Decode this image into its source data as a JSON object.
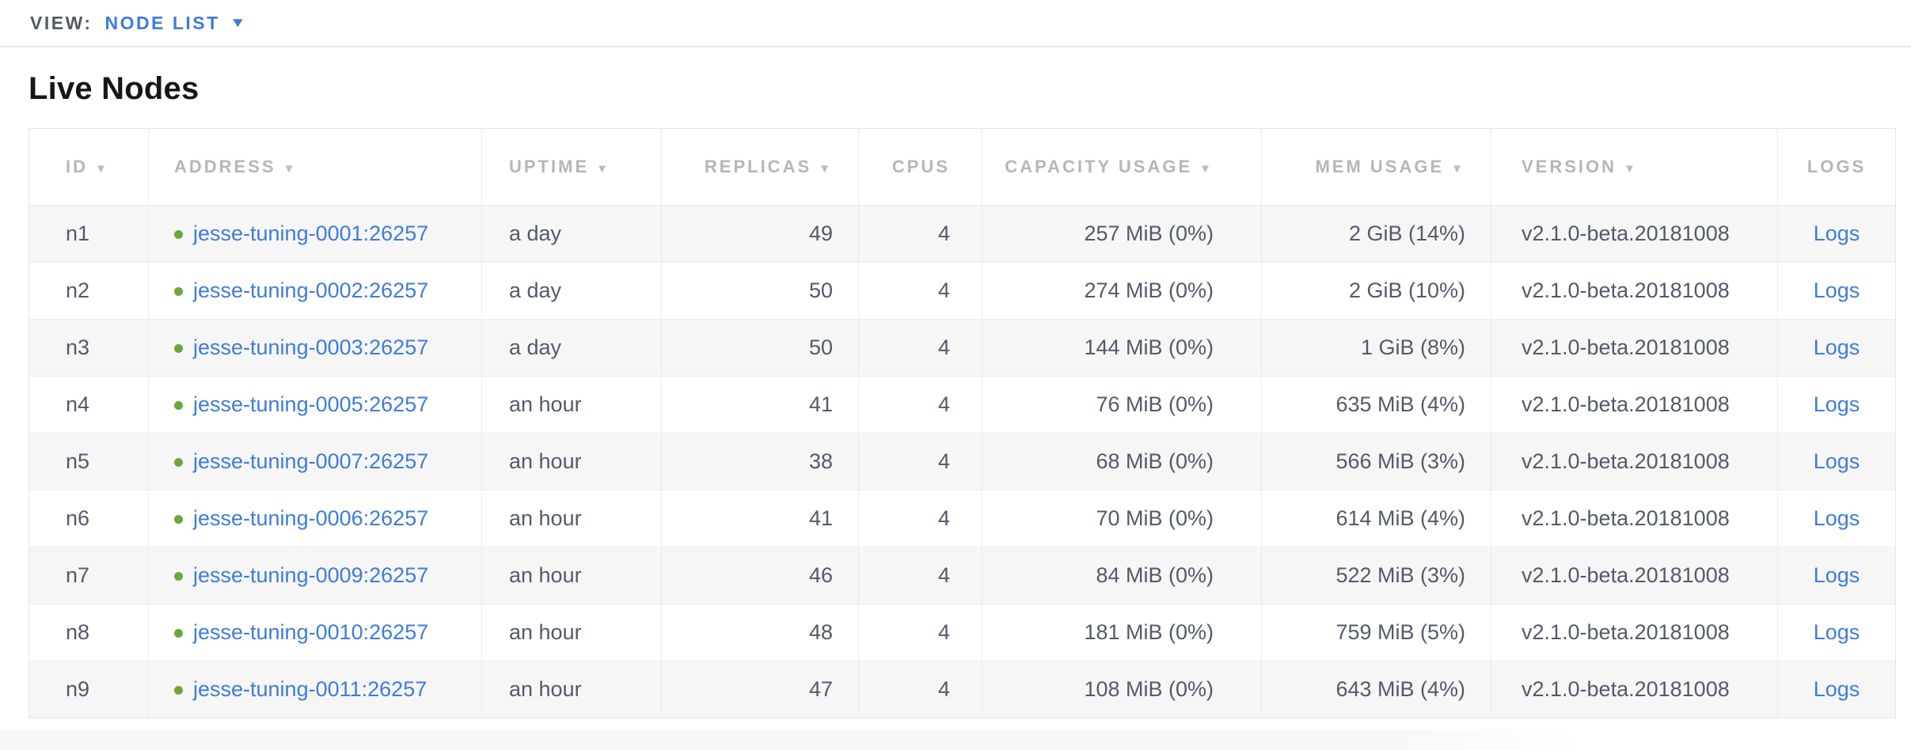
{
  "view_bar": {
    "label": "VIEW:",
    "selected": "NODE LIST"
  },
  "page": {
    "title": "Live Nodes"
  },
  "table": {
    "columns": [
      {
        "key": "id",
        "label": "ID",
        "sortable": true
      },
      {
        "key": "address",
        "label": "ADDRESS",
        "sortable": true
      },
      {
        "key": "uptime",
        "label": "UPTIME",
        "sortable": true
      },
      {
        "key": "replicas",
        "label": "REPLICAS",
        "sortable": true
      },
      {
        "key": "cpus",
        "label": "CPUS",
        "sortable": false
      },
      {
        "key": "capacity",
        "label": "CAPACITY USAGE",
        "sortable": true
      },
      {
        "key": "mem",
        "label": "MEM USAGE",
        "sortable": true
      },
      {
        "key": "version",
        "label": "VERSION",
        "sortable": true
      },
      {
        "key": "logs",
        "label": "LOGS",
        "sortable": false
      }
    ],
    "rows": [
      {
        "id": "n1",
        "address": "jesse-tuning-0001:26257",
        "uptime": "a day",
        "replicas": "49",
        "cpus": "4",
        "capacity": "257 MiB (0%)",
        "mem": "2 GiB (14%)",
        "version": "v2.1.0-beta.20181008",
        "logs": "Logs"
      },
      {
        "id": "n2",
        "address": "jesse-tuning-0002:26257",
        "uptime": "a day",
        "replicas": "50",
        "cpus": "4",
        "capacity": "274 MiB (0%)",
        "mem": "2 GiB (10%)",
        "version": "v2.1.0-beta.20181008",
        "logs": "Logs"
      },
      {
        "id": "n3",
        "address": "jesse-tuning-0003:26257",
        "uptime": "a day",
        "replicas": "50",
        "cpus": "4",
        "capacity": "144 MiB (0%)",
        "mem": "1 GiB (8%)",
        "version": "v2.1.0-beta.20181008",
        "logs": "Logs"
      },
      {
        "id": "n4",
        "address": "jesse-tuning-0005:26257",
        "uptime": "an hour",
        "replicas": "41",
        "cpus": "4",
        "capacity": "76 MiB (0%)",
        "mem": "635 MiB (4%)",
        "version": "v2.1.0-beta.20181008",
        "logs": "Logs"
      },
      {
        "id": "n5",
        "address": "jesse-tuning-0007:26257",
        "uptime": "an hour",
        "replicas": "38",
        "cpus": "4",
        "capacity": "68 MiB (0%)",
        "mem": "566 MiB (3%)",
        "version": "v2.1.0-beta.20181008",
        "logs": "Logs"
      },
      {
        "id": "n6",
        "address": "jesse-tuning-0006:26257",
        "uptime": "an hour",
        "replicas": "41",
        "cpus": "4",
        "capacity": "70 MiB (0%)",
        "mem": "614 MiB (4%)",
        "version": "v2.1.0-beta.20181008",
        "logs": "Logs"
      },
      {
        "id": "n7",
        "address": "jesse-tuning-0009:26257",
        "uptime": "an hour",
        "replicas": "46",
        "cpus": "4",
        "capacity": "84 MiB (0%)",
        "mem": "522 MiB (3%)",
        "version": "v2.1.0-beta.20181008",
        "logs": "Logs"
      },
      {
        "id": "n8",
        "address": "jesse-tuning-0010:26257",
        "uptime": "an hour",
        "replicas": "48",
        "cpus": "4",
        "capacity": "181 MiB (0%)",
        "mem": "759 MiB (5%)",
        "version": "v2.1.0-beta.20181008",
        "logs": "Logs"
      },
      {
        "id": "n9",
        "address": "jesse-tuning-0011:26257",
        "uptime": "an hour",
        "replicas": "47",
        "cpus": "4",
        "capacity": "108 MiB (0%)",
        "mem": "643 MiB (4%)",
        "version": "v2.1.0-beta.20181008",
        "logs": "Logs"
      }
    ]
  },
  "icons": {
    "dropdown_caret": "chevron-down-icon",
    "sort_arrow": "sort-desc-icon",
    "node_status": "status-dot-icon"
  },
  "colors": {
    "link_blue": "#3e7cd9",
    "status_green": "#6aa83c",
    "header_gray": "#b4b6ba",
    "cell_text": "#525a6a",
    "row_stripe": "#f6f6f7",
    "border": "#ececed"
  }
}
